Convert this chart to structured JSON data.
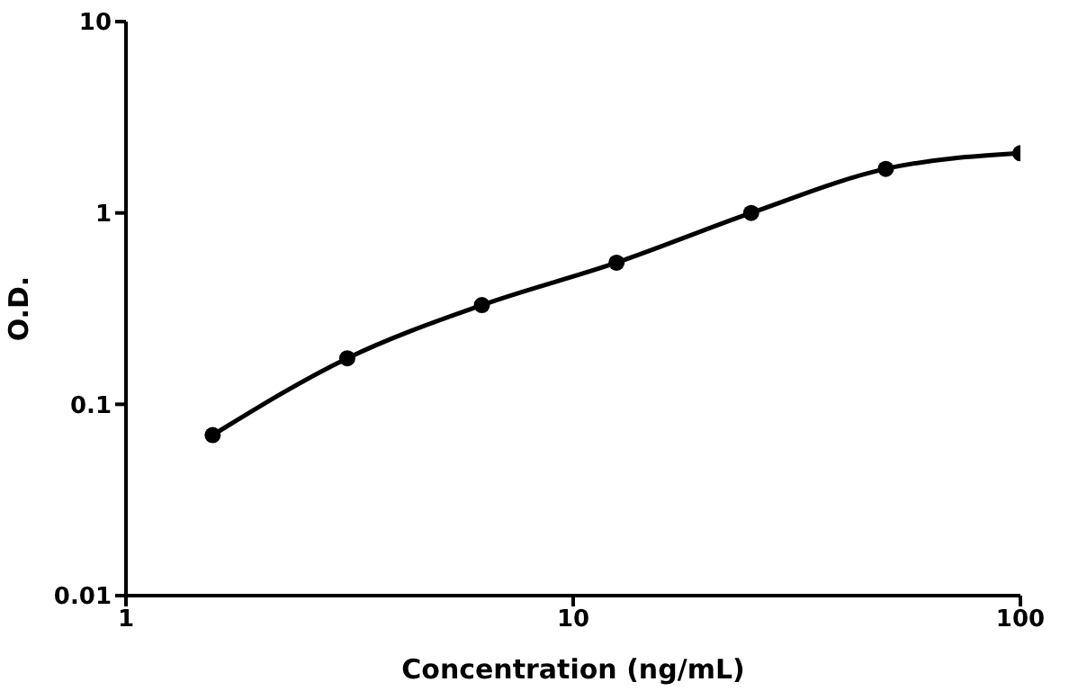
{
  "chart_data": {
    "type": "line",
    "xlabel": "Concentration (ng/mL)",
    "ylabel": "O.D.",
    "log": "xy",
    "x": [
      1.5625,
      3.125,
      6.25,
      12.5,
      25,
      50,
      100
    ],
    "series": [
      {
        "color": "#000000",
        "values": [
          0.069,
          0.174,
          0.33,
          0.55,
          1.0,
          1.7,
          2.05
        ]
      }
    ],
    "xlim": [
      1,
      100
    ],
    "xticks": [
      1,
      10,
      100
    ],
    "ylim": [
      0.01,
      10
    ],
    "yticks": [
      0.01,
      0.1,
      1,
      10
    ],
    "grid": false,
    "legend": false,
    "marker": "circle",
    "line_style": "solid"
  }
}
